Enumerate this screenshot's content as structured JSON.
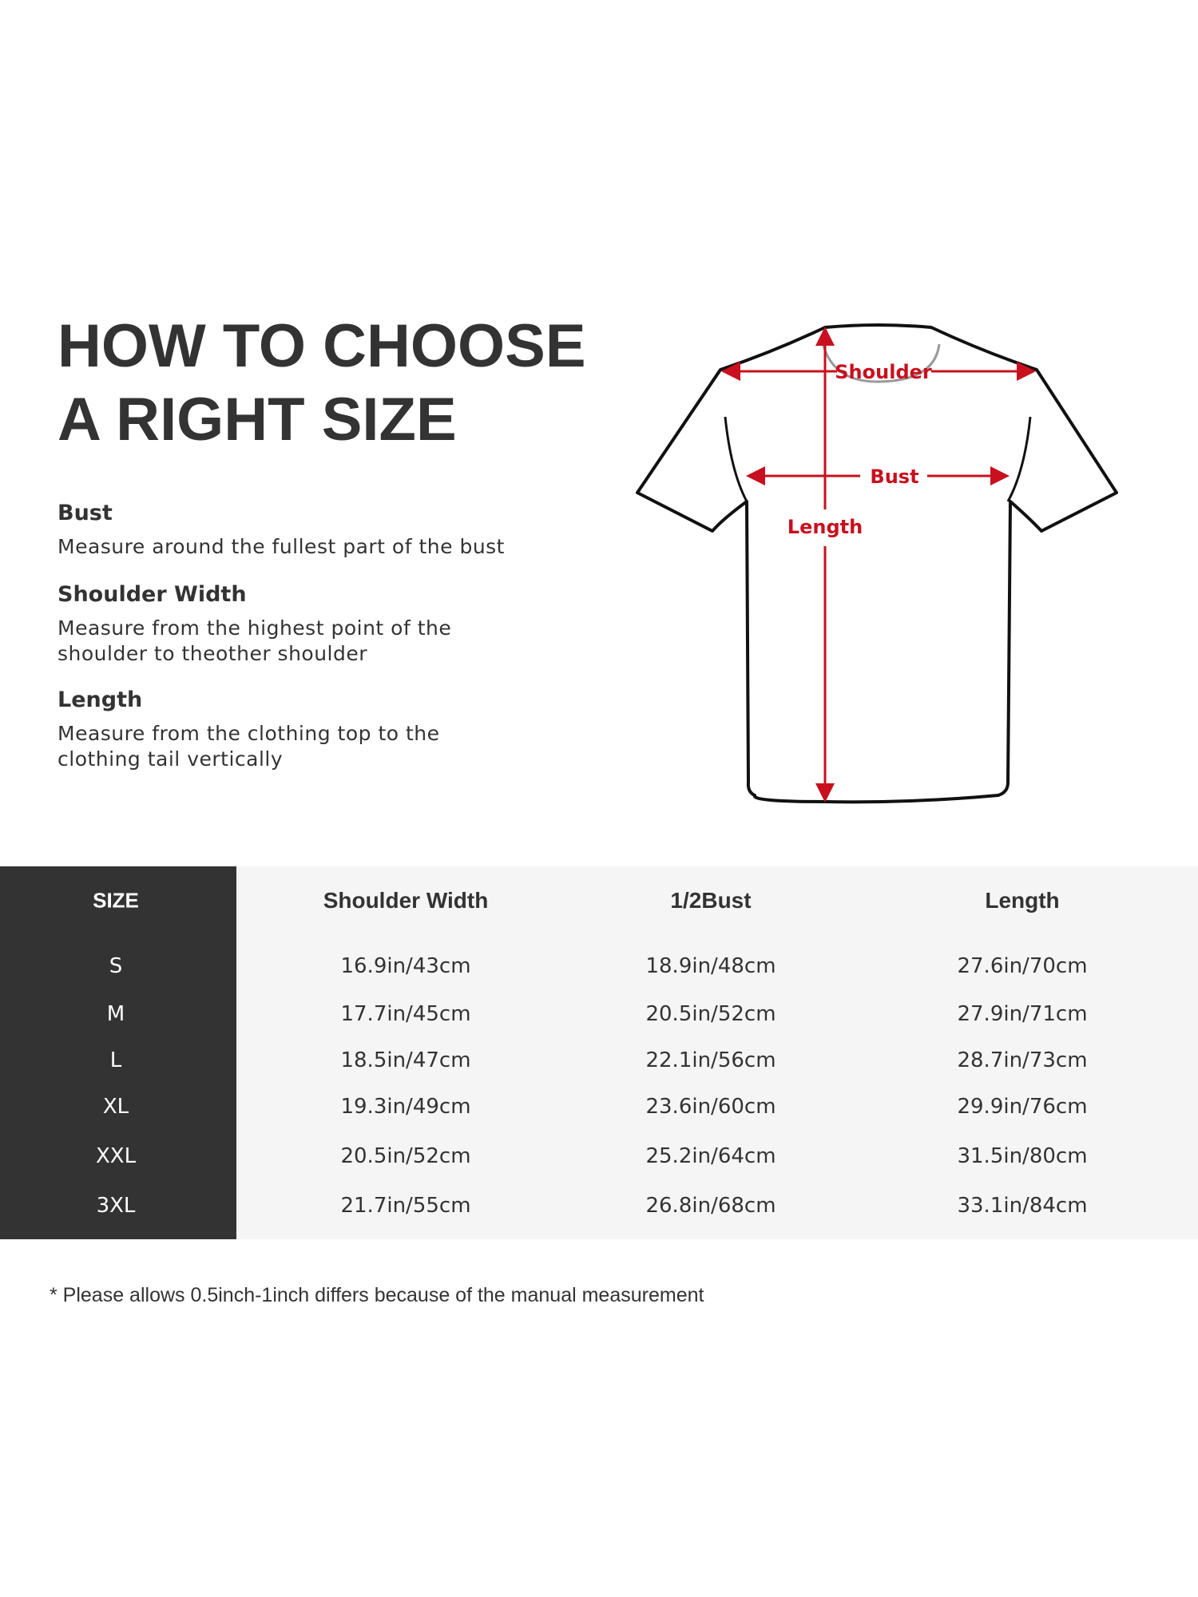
{
  "title": {
    "line1": "HOW TO CHOOSE",
    "line2": "A RIGHT SIZE"
  },
  "guides": [
    {
      "heading": "Bust",
      "lines": [
        "Measure around the fullest part of the bust"
      ]
    },
    {
      "heading": "Shoulder Width",
      "lines": [
        "Measure from the highest point of the",
        "shoulder to theother shoulder"
      ]
    },
    {
      "heading": "Length",
      "lines": [
        "Measure from the clothing top to the",
        "clothing tail vertically"
      ]
    }
  ],
  "diagram": {
    "shoulder": "Shoulder",
    "bust": "Bust",
    "length": "Length",
    "arrow_color": "#c8101e"
  },
  "table": {
    "headers": [
      "SIZE",
      "Shoulder Width",
      "1/2Bust",
      "Length"
    ],
    "rows": [
      [
        "S",
        "16.9in/43cm",
        "18.9in/48cm",
        "27.6in/70cm"
      ],
      [
        "M",
        "17.7in/45cm",
        "20.5in/52cm",
        "27.9in/71cm"
      ],
      [
        "L",
        "18.5in/47cm",
        "22.1in/56cm",
        "28.7in/73cm"
      ],
      [
        "XL",
        "19.3in/49cm",
        "23.6in/60cm",
        "29.9in/76cm"
      ],
      [
        "XXL",
        "20.5in/52cm",
        "25.2in/64cm",
        "31.5in/80cm"
      ],
      [
        "3XL",
        "21.7in/55cm",
        "26.8in/68cm",
        "33.1in/84cm"
      ]
    ]
  },
  "note": "* Please allows 0.5inch-1inch differs because of the  manual measurement"
}
